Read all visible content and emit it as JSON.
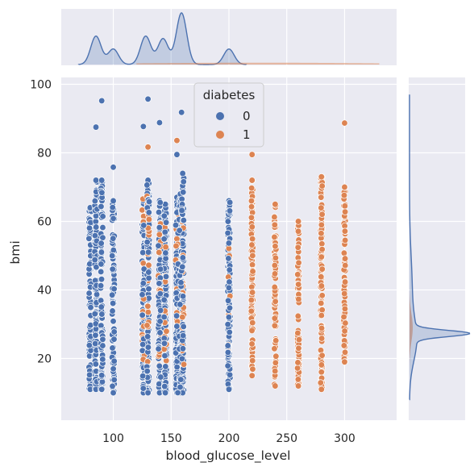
{
  "chart_data": {
    "type": "scatter",
    "subtype": "jointplot",
    "xlabel": "blood_glucose_level",
    "ylabel": "bmi",
    "xlim": [
      55,
      345
    ],
    "ylim": [
      2,
      102
    ],
    "xticks": [
      100,
      150,
      200,
      250,
      300
    ],
    "yticks": [
      20,
      40,
      60,
      80,
      100
    ],
    "grid": true,
    "legend": {
      "title": "diabetes",
      "position": "top-center"
    },
    "colors": {
      "background": "#eaeaf2",
      "grid": "#ffffff",
      "series0": "#4c72b0",
      "series1": "#dd8452"
    },
    "series": [
      {
        "name": "0",
        "color": "#4c72b0",
        "columns": [
          {
            "x": 80,
            "ymin": 11,
            "ymax": 64
          },
          {
            "x": 85,
            "ymin": 11,
            "ymax": 72
          },
          {
            "x": 90,
            "ymin": 11,
            "ymax": 72
          },
          {
            "x": 100,
            "ymin": 10,
            "ymax": 66
          },
          {
            "x": 126,
            "ymin": 10,
            "ymax": 66
          },
          {
            "x": 130,
            "ymin": 10,
            "ymax": 72
          },
          {
            "x": 140,
            "ymin": 10,
            "ymax": 66
          },
          {
            "x": 145,
            "ymin": 10,
            "ymax": 65
          },
          {
            "x": 155,
            "ymin": 10,
            "ymax": 67
          },
          {
            "x": 158,
            "ymin": 10,
            "ymax": 68
          },
          {
            "x": 160,
            "ymin": 10,
            "ymax": 74
          },
          {
            "x": 200,
            "ymin": 11,
            "ymax": 66
          }
        ],
        "outliers": [
          {
            "x": 85,
            "y": 87.5
          },
          {
            "x": 90,
            "y": 95.2
          },
          {
            "x": 100,
            "y": 75.8
          },
          {
            "x": 126,
            "y": 87.7
          },
          {
            "x": 130,
            "y": 95.7
          },
          {
            "x": 140,
            "y": 88.8
          },
          {
            "x": 155,
            "y": 79.5
          },
          {
            "x": 159,
            "y": 91.8
          }
        ]
      },
      {
        "name": "1",
        "color": "#dd8452",
        "columns": [
          {
            "x": 220,
            "ymin": 15,
            "ymax": 72
          },
          {
            "x": 240,
            "ymin": 12,
            "ymax": 65
          },
          {
            "x": 260,
            "ymin": 12,
            "ymax": 60
          },
          {
            "x": 280,
            "ymin": 11,
            "ymax": 73
          },
          {
            "x": 300,
            "ymin": 19,
            "ymax": 70
          }
        ],
        "mixed_columns": [
          {
            "x": 126,
            "ymin": 18,
            "ymax": 67
          },
          {
            "x": 130,
            "ymin": 15,
            "ymax": 69
          },
          {
            "x": 140,
            "ymin": 16,
            "ymax": 63
          },
          {
            "x": 145,
            "ymin": 18,
            "ymax": 60
          },
          {
            "x": 155,
            "ymin": 20,
            "ymax": 65
          },
          {
            "x": 160,
            "ymin": 18,
            "ymax": 69
          },
          {
            "x": 200,
            "ymin": 22,
            "ymax": 55
          }
        ],
        "outliers": [
          {
            "x": 130,
            "y": 81.7
          },
          {
            "x": 155,
            "y": 83.6
          },
          {
            "x": 220,
            "y": 79.5
          },
          {
            "x": 300,
            "y": 88.7
          }
        ]
      }
    ],
    "marginal_x": {
      "note": "density of blood_glucose_level",
      "peaks": [
        {
          "x": 85,
          "h": 0.55
        },
        {
          "x": 100,
          "h": 0.3
        },
        {
          "x": 128,
          "h": 0.55
        },
        {
          "x": 143,
          "h": 0.5
        },
        {
          "x": 159,
          "h": 1.0
        },
        {
          "x": 200,
          "h": 0.3
        }
      ]
    },
    "marginal_y": {
      "note": "density of bmi, sharp peak near 27"
    }
  }
}
